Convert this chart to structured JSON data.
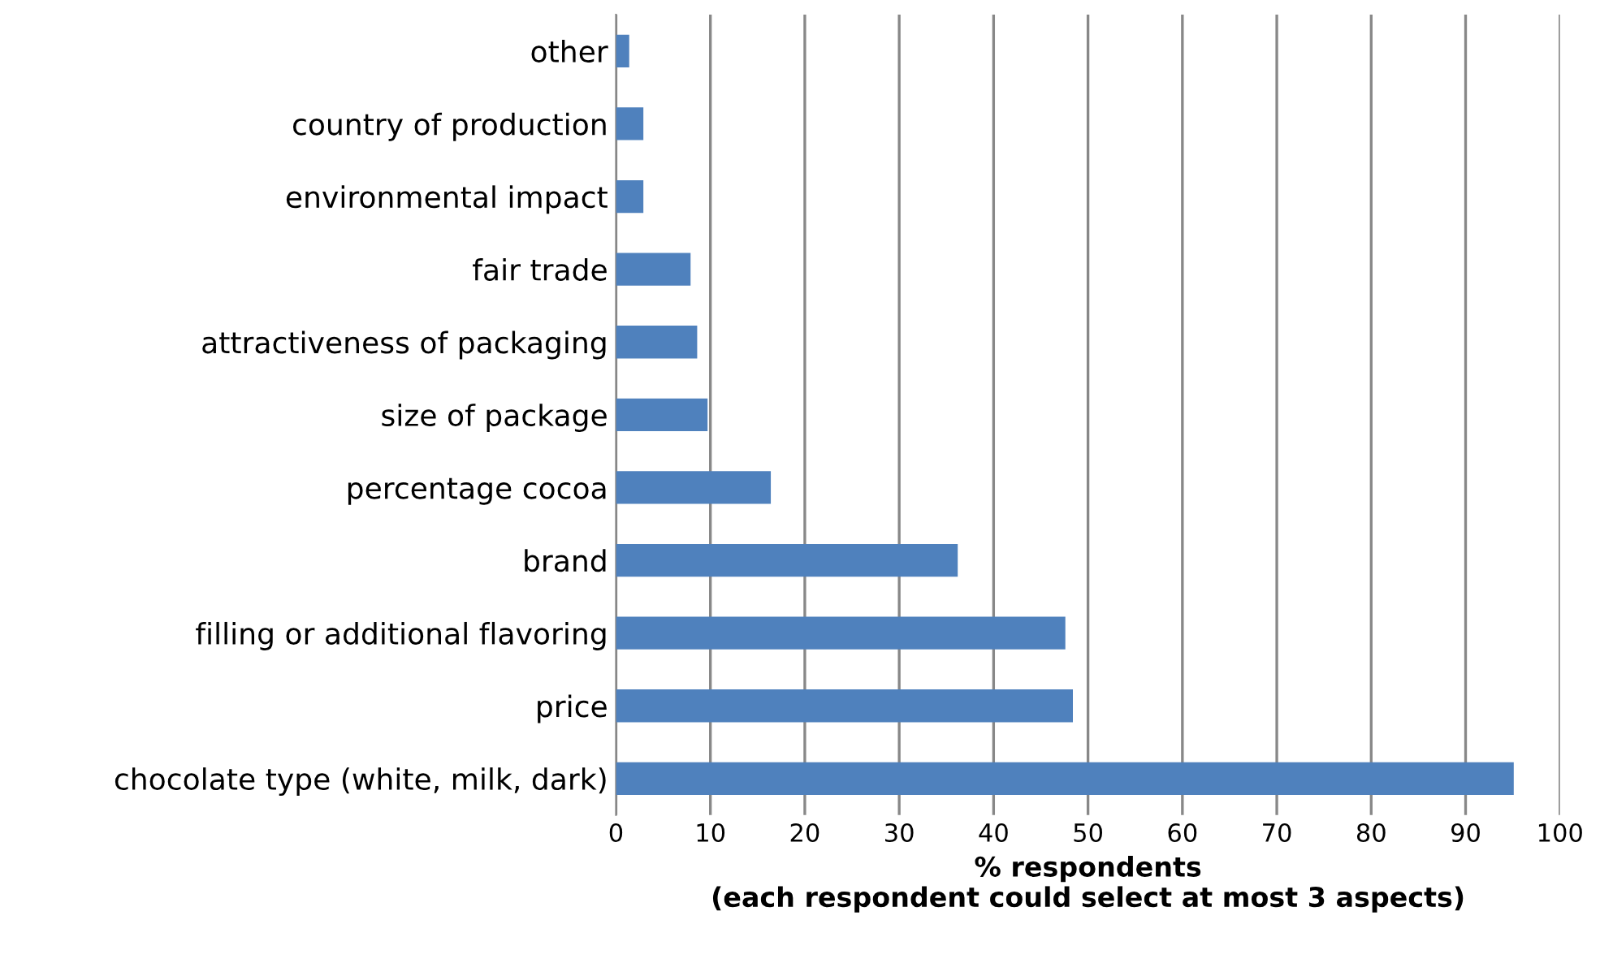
{
  "chart_data": {
    "type": "bar",
    "orientation": "horizontal",
    "categories": [
      "other",
      "country of production",
      "environmental impact",
      "fair trade",
      "attractiveness of packaging",
      "size of package",
      "percentage cocoa",
      "brand",
      "filling or additional flavoring",
      "price",
      "chocolate type (white, milk, dark)"
    ],
    "values": [
      1.4,
      2.9,
      2.9,
      7.9,
      8.6,
      9.7,
      16.4,
      36.2,
      47.6,
      48.4,
      95.1
    ],
    "color": "#4f81bd",
    "xlabel": "% respondents\n(each respondent could select at most 3 aspects)",
    "xlim": [
      0,
      100
    ],
    "xticks": [
      0,
      10,
      20,
      30,
      40,
      50,
      60,
      70,
      80,
      90,
      100
    ],
    "grid": "x"
  }
}
